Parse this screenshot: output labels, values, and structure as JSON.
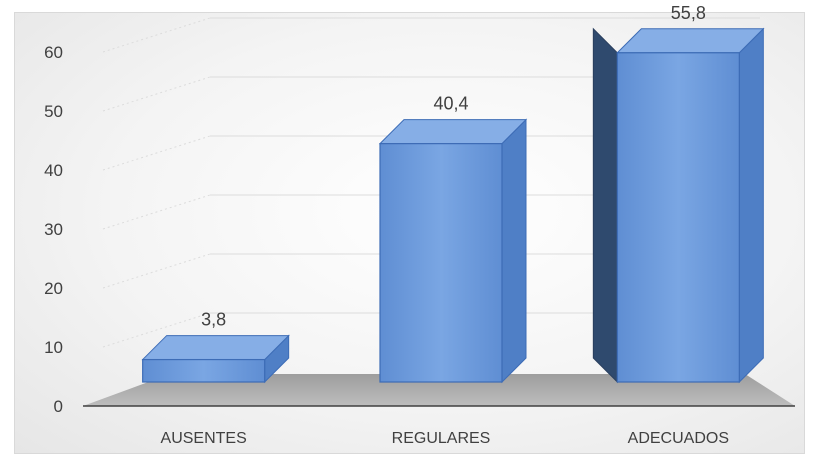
{
  "chart_data": {
    "type": "bar",
    "categories": [
      "AUSENTES",
      "REGULARES",
      "ADECUADOS"
    ],
    "values": [
      3.8,
      40.4,
      55.8
    ],
    "value_labels": [
      "3,8",
      "40,4",
      "55,8"
    ],
    "yticks": [
      "0",
      "10",
      "20",
      "30",
      "40",
      "50",
      "60"
    ],
    "ylim": [
      0,
      60
    ],
    "grid": true,
    "style": "3d-column",
    "colors": {
      "bar": "#6f9ad8",
      "bar_edge": "#3d6cb6",
      "floor": "#a6a6a6",
      "grid": "#dcdcdc"
    }
  }
}
